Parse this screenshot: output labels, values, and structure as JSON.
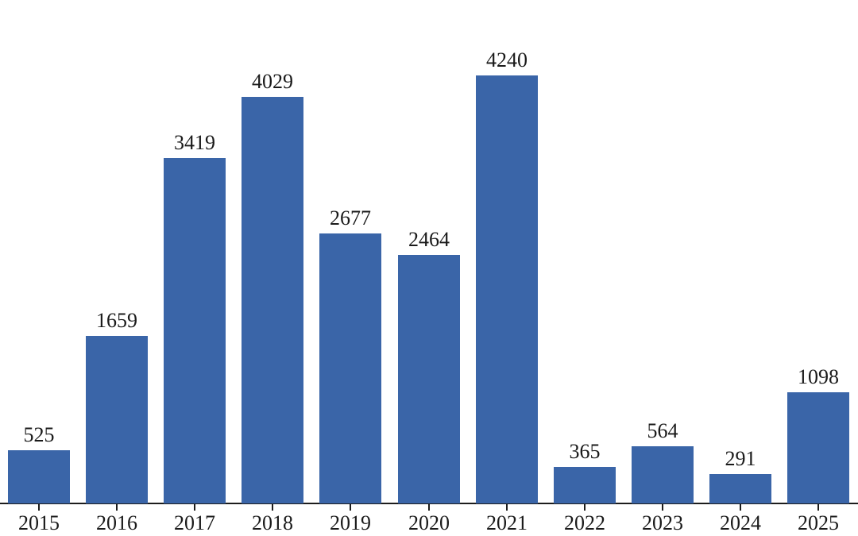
{
  "chart_data": {
    "type": "bar",
    "title": "",
    "xlabel": "",
    "ylabel": "",
    "categories": [
      "2015",
      "2016",
      "2017",
      "2018",
      "2019",
      "2020",
      "2021",
      "2022",
      "2023",
      "2024",
      "2025"
    ],
    "values": [
      525,
      1659,
      3419,
      4029,
      2677,
      2464,
      4240,
      365,
      564,
      291,
      1098
    ],
    "value_labels_shown": true,
    "ylim": [
      0,
      4450
    ],
    "grid": false,
    "legend": null,
    "colors": {
      "bar": "#3a65a8",
      "axis": "#1c1c1c",
      "text": "#1a1a1a",
      "background": "#ffffff"
    }
  }
}
